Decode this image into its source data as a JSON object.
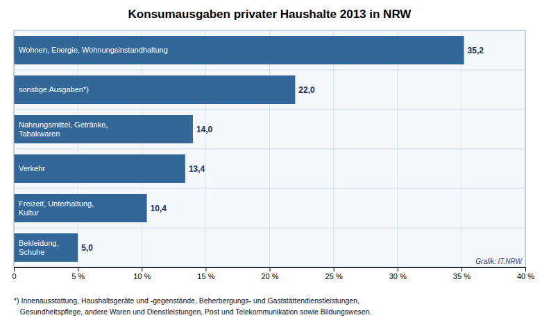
{
  "chart_data": {
    "type": "bar",
    "orientation": "horizontal",
    "title": "Konsumausgaben privater Haushalte 2013 in NRW",
    "categories": [
      "Bekleidung,\nSchuhe",
      "Freizeit, Unterhaltung,\nKultur",
      "Verkehr",
      "Nahrungsmittel, Getränke,\nTabakwaren",
      "sonstige Ausgaben*)",
      "Wohnen, Energie, Wohnungsinstandhaltung"
    ],
    "values": [
      5.0,
      10.4,
      13.4,
      14.0,
      22.0,
      35.2
    ],
    "data_labels": true,
    "value_labels": [
      "5,0",
      "10,4",
      "13,4",
      "14,0",
      "22,0",
      "35,2"
    ],
    "color": "#336699",
    "xlim": [
      0,
      40
    ],
    "xticks": [
      0,
      {
        "value": 5,
        "label": "5 %"
      },
      {
        "value": 10,
        "label": "10 %"
      },
      {
        "value": 15,
        "label": "15 %"
      },
      {
        "value": 20,
        "label": "20 %"
      },
      {
        "value": 25,
        "label": "25 %"
      },
      {
        "value": 30,
        "label": "30 %"
      },
      {
        "value": 35,
        "label": "35 %"
      },
      {
        "value": 40,
        "label": "40 %"
      }
    ],
    "grid": true,
    "annotations": [
      "Grafik: IT.NRW",
      "*) Innenausstattung, Haushaltsgeräte und -gegenstände, Beherbergungs- und Gaststättendienstleistungen,",
      "   Gesundheitspflege, andere Waren und Dienstleistungen, Post und Telekommunikation sowie Bildungswesen."
    ]
  }
}
